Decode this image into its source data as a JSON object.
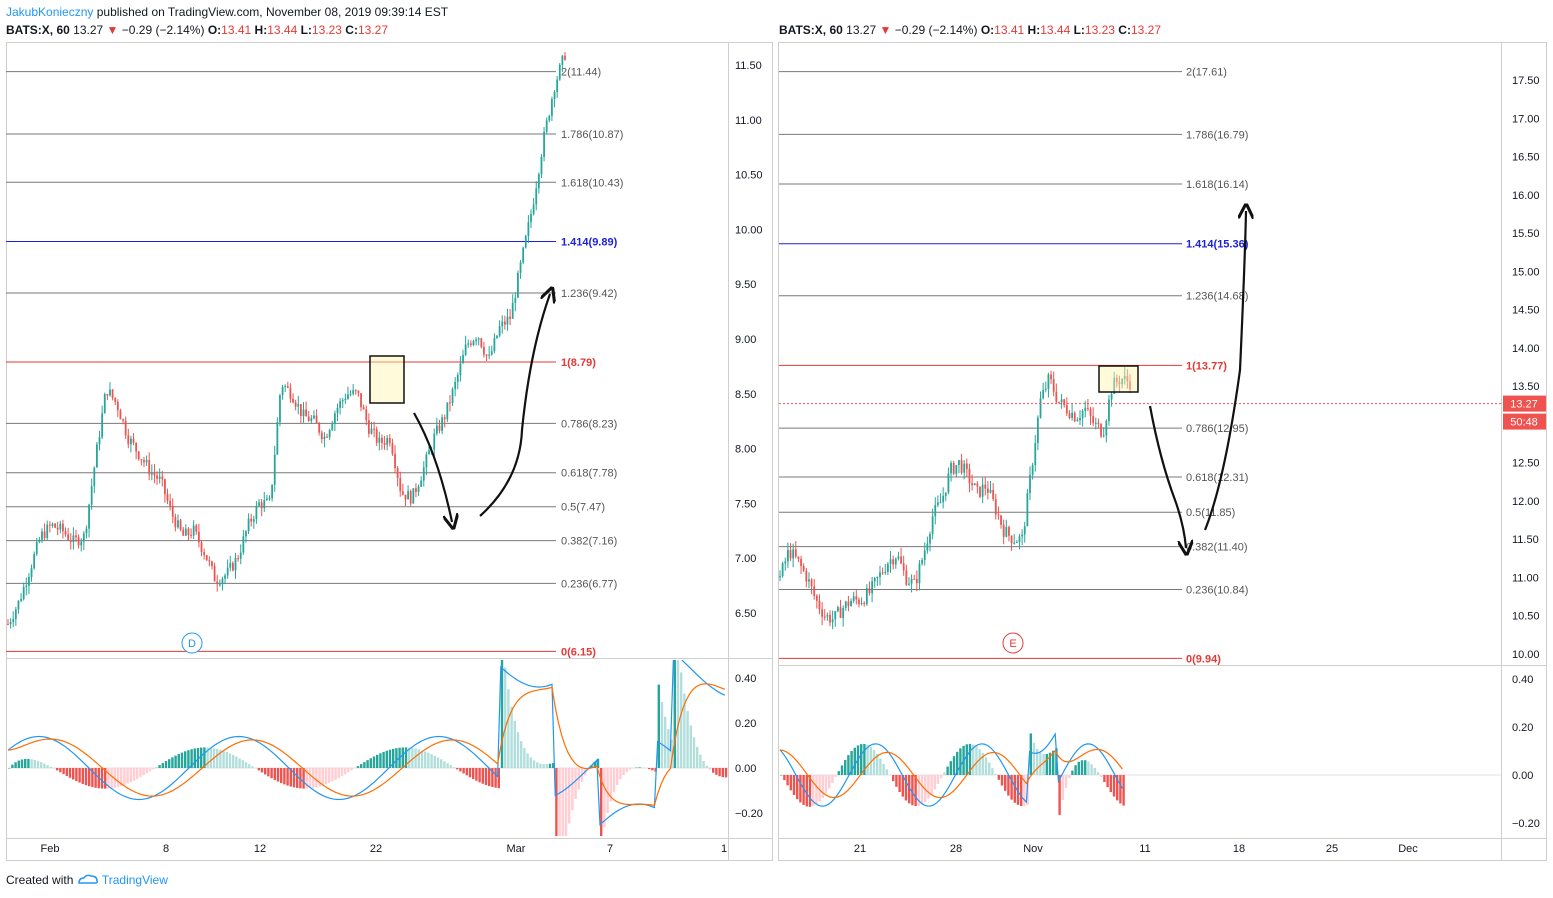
{
  "header": {
    "author": "JakubKonieczny",
    "published": "published on TradingView.com, November 08, 2019 09:39:14 EST"
  },
  "left": {
    "symbol": "BATS:X, 60",
    "last": "13.27",
    "change": "−0.29 (−2.14%)",
    "o_label": "O:",
    "o": "13.41",
    "h_label": "H:",
    "h": "13.44",
    "l_label": "L:",
    "l": "13.23",
    "c_label": "C:",
    "c": "13.27",
    "marker": "D"
  },
  "right": {
    "symbol": "BATS:X, 60",
    "last": "13.27",
    "change": "−0.29 (−2.14%)",
    "o_label": "O:",
    "o": "13.41",
    "h_label": "H:",
    "h": "13.44",
    "l_label": "L:",
    "l": "13.23",
    "c_label": "C:",
    "c": "13.27",
    "marker": "E",
    "price_tag": "13.27",
    "countdown": "50:48"
  },
  "footer": {
    "created_with": "Created with",
    "brand": "TradingView"
  },
  "colors": {
    "up": "#26a69a",
    "down": "#ef5350",
    "fib_blue": "#1e22d6",
    "fib_red": "#e53935",
    "macd": "#2196f3",
    "signal": "#ff6d00",
    "hist_up_strong": "#26a69a",
    "hist_up_weak": "#b2dfdb",
    "hist_down_strong": "#ef5350",
    "hist_down_weak": "#ffcdd2"
  },
  "chart_data": [
    {
      "type": "line",
      "title": "BATS:X, 60",
      "y_axis_ticks": [
        "11.50",
        "11.00",
        "10.50",
        "10.00",
        "9.50",
        "9.00",
        "8.50",
        "8.00",
        "7.50",
        "7.00",
        "6.50"
      ],
      "x_axis_ticks": [
        "Feb",
        "8",
        "12",
        "22",
        "Mar",
        "7",
        "1"
      ],
      "fib_levels": [
        {
          "label": "2(11.44)",
          "value": 11.44,
          "color": "gray"
        },
        {
          "label": "1.786(10.87)",
          "value": 10.87,
          "color": "gray"
        },
        {
          "label": "1.618(10.43)",
          "value": 10.43,
          "color": "gray"
        },
        {
          "label": "1.414(9.89)",
          "value": 9.89,
          "color": "blue"
        },
        {
          "label": "1.236(9.42)",
          "value": 9.42,
          "color": "gray"
        },
        {
          "label": "1(8.79)",
          "value": 8.79,
          "color": "red"
        },
        {
          "label": "0.786(8.23)",
          "value": 8.23,
          "color": "gray"
        },
        {
          "label": "0.618(7.78)",
          "value": 7.78,
          "color": "gray"
        },
        {
          "label": "0.5(7.47)",
          "value": 7.47,
          "color": "gray"
        },
        {
          "label": "0.382(7.16)",
          "value": 7.16,
          "color": "gray"
        },
        {
          "label": "0.236(6.77)",
          "value": 6.77,
          "color": "gray"
        },
        {
          "label": "0(6.15)",
          "value": 6.15,
          "color": "red"
        }
      ],
      "price_path": [
        6.4,
        6.6,
        6.9,
        7.2,
        7.3,
        7.25,
        7.15,
        7.2,
        7.9,
        8.55,
        8.4,
        8.1,
        7.95,
        7.8,
        7.7,
        7.4,
        7.2,
        7.25,
        7.05,
        6.8,
        6.85,
        7.0,
        7.3,
        7.5,
        7.5,
        8.6,
        8.5,
        8.3,
        8.25,
        8.1,
        8.35,
        8.5,
        8.5,
        8.2,
        8.05,
        8.1,
        7.6,
        7.55,
        7.8,
        8.1,
        8.3,
        8.6,
        8.95,
        9.05,
        8.8,
        9.1,
        9.2,
        9.7,
        10.2,
        10.8,
        11.3,
        11.6
      ],
      "ind_y_ticks": [
        "0.40",
        "0.20",
        "0.00",
        "−0.20"
      ]
    },
    {
      "type": "line",
      "title": "BATS:X, 60",
      "y_axis_ticks": [
        "17.50",
        "17.00",
        "16.50",
        "16.00",
        "15.50",
        "15.00",
        "14.50",
        "14.00",
        "13.50",
        "13.00",
        "12.50",
        "12.00",
        "11.50",
        "11.00",
        "10.50",
        "10.00"
      ],
      "x_axis_ticks": [
        "21",
        "28",
        "Nov",
        "11",
        "18",
        "25",
        "Dec"
      ],
      "fib_levels": [
        {
          "label": "2(17.61)",
          "value": 17.61,
          "color": "gray"
        },
        {
          "label": "1.786(16.79)",
          "value": 16.79,
          "color": "gray"
        },
        {
          "label": "1.618(16.14)",
          "value": 16.14,
          "color": "gray"
        },
        {
          "label": "1.414(15.36)",
          "value": 15.36,
          "color": "blue"
        },
        {
          "label": "1.236(14.68)",
          "value": 14.68,
          "color": "gray"
        },
        {
          "label": "1(13.77)",
          "value": 13.77,
          "color": "red"
        },
        {
          "label": "0.786(12.95)",
          "value": 12.95,
          "color": "gray"
        },
        {
          "label": "0.618(12.31)",
          "value": 12.31,
          "color": "gray"
        },
        {
          "label": "0.5(11.85)",
          "value": 11.85,
          "color": "gray"
        },
        {
          "label": "0.382(11.40)",
          "value": 11.4,
          "color": "gray"
        },
        {
          "label": "0.236(10.84)",
          "value": 10.84,
          "color": "gray"
        },
        {
          "label": "0(9.94)",
          "value": 9.94,
          "color": "red"
        }
      ],
      "price_path": [
        11.0,
        11.35,
        11.2,
        11.0,
        10.7,
        10.5,
        10.45,
        10.6,
        10.7,
        10.7,
        10.8,
        11.0,
        11.2,
        11.3,
        11.0,
        10.9,
        11.3,
        11.8,
        12.0,
        12.4,
        12.5,
        12.3,
        12.1,
        12.2,
        11.9,
        11.6,
        11.5,
        11.5,
        12.4,
        13.3,
        13.6,
        13.3,
        13.2,
        13.1,
        13.2,
        13.0,
        12.9,
        13.5,
        13.6,
        13.55
      ],
      "ind_y_ticks": [
        "0.40",
        "0.20",
        "0.00",
        "−0.20"
      ]
    }
  ]
}
